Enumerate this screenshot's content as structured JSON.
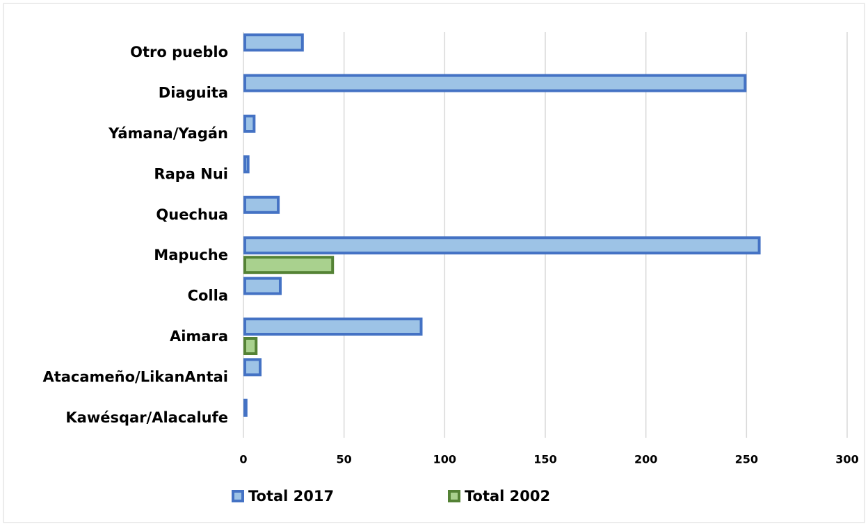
{
  "chart_data": {
    "type": "bar",
    "orientation": "horizontal",
    "categories": [
      "Otro pueblo",
      "Diaguita",
      "Yámana/Yagán",
      "Rapa Nui",
      "Quechua",
      "Mapuche",
      "Colla",
      "Aimara",
      "Atacameño/LikanAntai",
      "Kawésqar/Alacalufe"
    ],
    "series": [
      {
        "name": "Total 2017",
        "color": "#9dc3e6",
        "border": "#4472c4",
        "values": [
          30,
          250,
          6,
          3,
          18,
          257,
          19,
          89,
          9,
          2
        ]
      },
      {
        "name": "Total 2002",
        "color": "#a9d18e",
        "border": "#548235",
        "values": [
          0,
          0,
          1,
          0,
          0,
          45,
          0,
          7,
          1,
          0
        ]
      }
    ],
    "xlim": [
      0,
      300
    ],
    "xticks": [
      0,
      50,
      100,
      150,
      200,
      250,
      300
    ],
    "grid": true,
    "legend": "bottom"
  }
}
